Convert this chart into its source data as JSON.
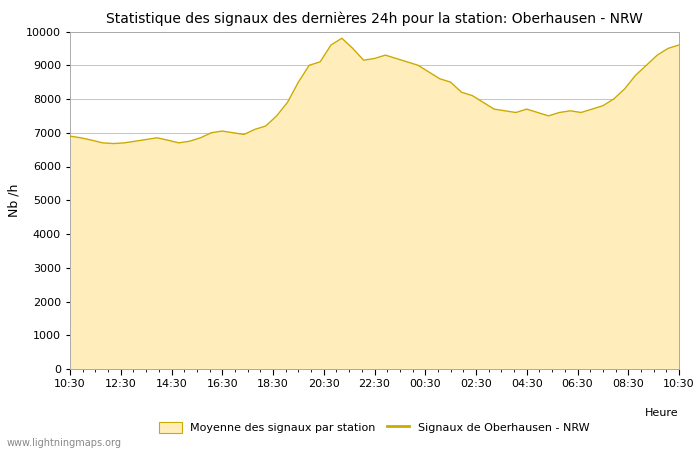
{
  "title": "Statistique des signaux des dernières 24h pour la station: Oberhausen - NRW",
  "xlabel": "Heure",
  "ylabel": "Nb /h",
  "ylim": [
    0,
    10000
  ],
  "yticks": [
    0,
    1000,
    2000,
    3000,
    4000,
    5000,
    6000,
    7000,
    8000,
    9000,
    10000
  ],
  "x_labels": [
    "10:30",
    "12:30",
    "14:30",
    "16:30",
    "18:30",
    "20:30",
    "22:30",
    "00:30",
    "02:30",
    "04:30",
    "06:30",
    "08:30",
    "10:30"
  ],
  "fill_color": "#ffeebb",
  "line_color": "#ccaa00",
  "background_color": "#ffffff",
  "grid_color": "#bbbbbb",
  "title_fontsize": 10,
  "legend_fill_label": "Moyenne des signaux par station",
  "legend_line_label": "Signaux de Oberhausen - NRW",
  "watermark": "www.lightningmaps.org",
  "area_data": [
    6900,
    6850,
    6780,
    6700,
    6680,
    6700,
    6750,
    6800,
    6850,
    6780,
    6700,
    6750,
    6850,
    7000,
    7050,
    7000,
    6950,
    7100,
    7200,
    7500,
    7900,
    8500,
    9000,
    9100,
    9600,
    9800,
    9500,
    9150,
    9200,
    9300,
    9200,
    9100,
    9000,
    8800,
    8600,
    8500,
    8200,
    8100,
    7900,
    7700,
    7650,
    7600,
    7700,
    7600,
    7500,
    7600,
    7650,
    7600,
    7700,
    7800,
    8000,
    8300,
    8700,
    9000,
    9300,
    9500,
    9600
  ],
  "line_data": [
    6900,
    6850,
    6780,
    6700,
    6680,
    6700,
    6750,
    6800,
    6850,
    6780,
    6700,
    6750,
    6850,
    7000,
    7050,
    7000,
    6950,
    7100,
    7200,
    7500,
    7900,
    8500,
    9000,
    9100,
    9600,
    9800,
    9500,
    9150,
    9200,
    9300,
    9200,
    9100,
    9000,
    8800,
    8600,
    8500,
    8200,
    8100,
    7900,
    7700,
    7650,
    7600,
    7700,
    7600,
    7500,
    7600,
    7650,
    7600,
    7700,
    7800,
    8000,
    8300,
    8700,
    9000,
    9300,
    9500,
    9600
  ],
  "n_points": 57
}
